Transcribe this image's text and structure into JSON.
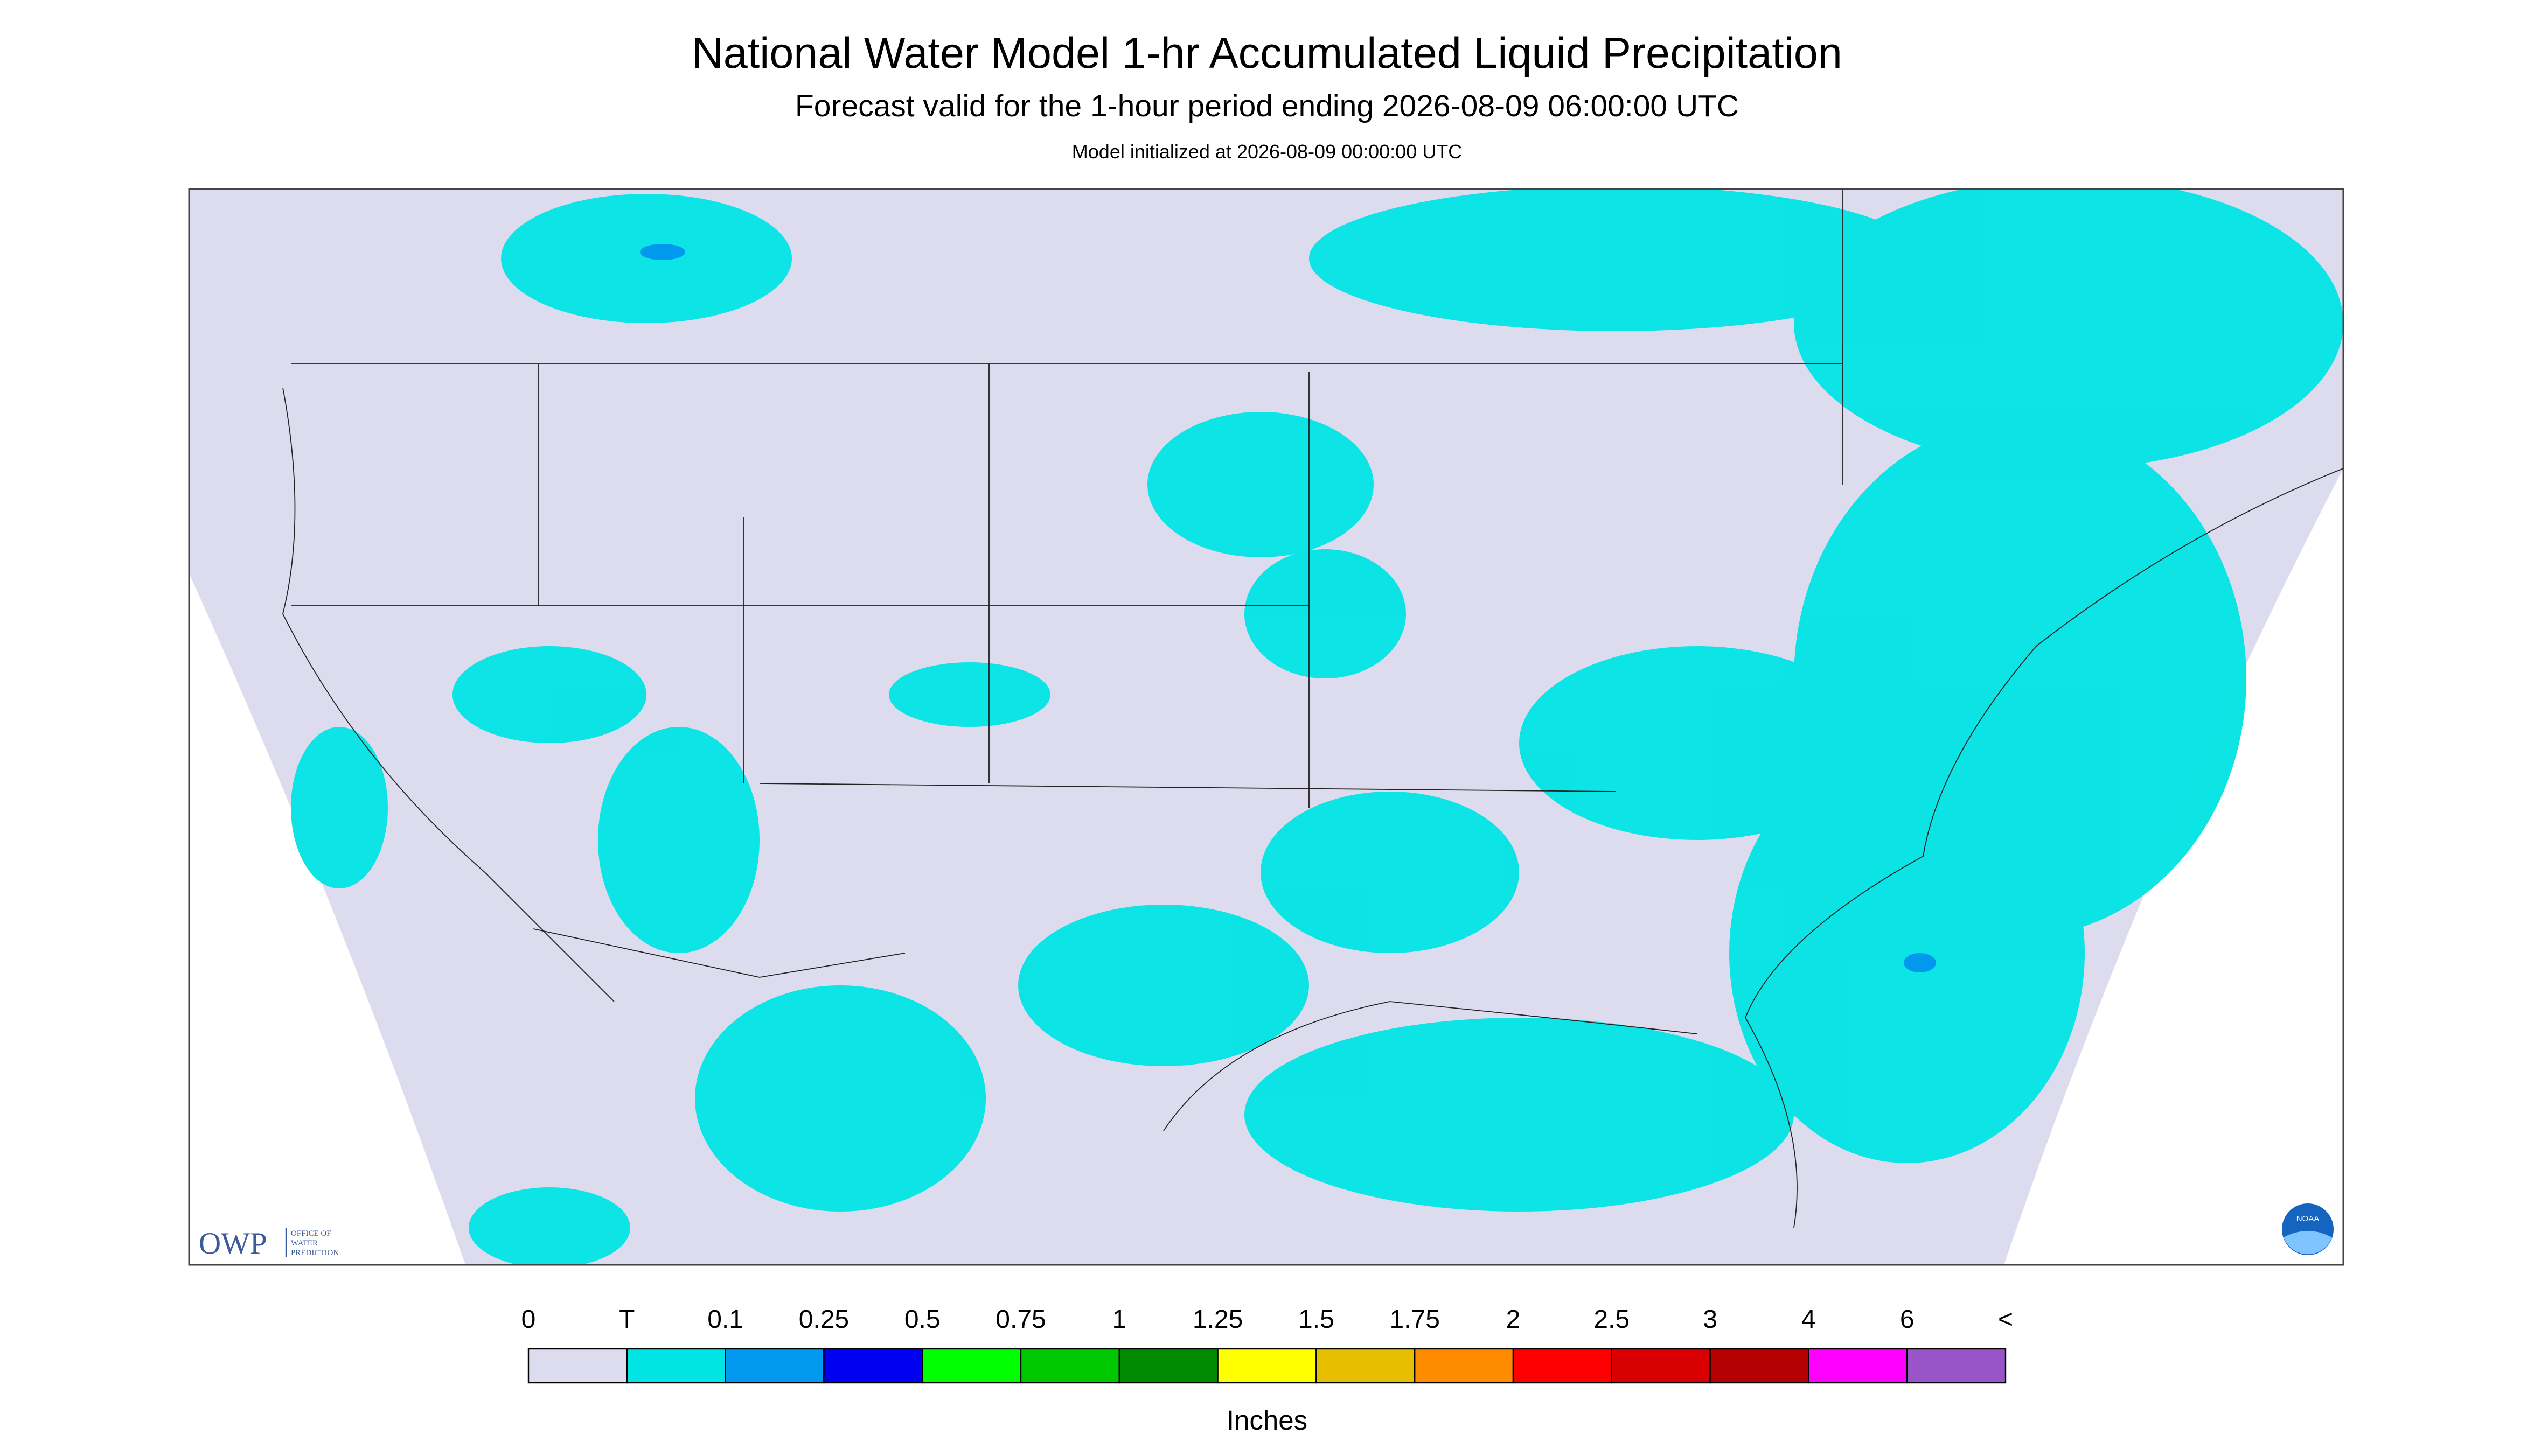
{
  "header": {
    "title": "National Water Model 1-hr Accumulated Liquid Precipitation",
    "subtitle": "Forecast valid for the 1-hour period ending 2026-08-09 06:00:00 UTC",
    "note": "Model initialized at 2026-08-09 00:00:00 UTC"
  },
  "logos": {
    "owp": "OWP",
    "owp_text": [
      "OFFICE OF",
      "WATER",
      "PREDICTION"
    ],
    "noaa": "NOAA"
  },
  "legend": {
    "labels": [
      "0",
      "T",
      "0.1",
      "0.25",
      "0.5",
      "0.75",
      "1",
      "1.25",
      "1.5",
      "1.75",
      "2",
      "2.5",
      "3",
      "4",
      "6",
      "<"
    ],
    "colors": [
      "#dcdcee",
      "#00e4e4",
      "#0099ee",
      "#0000f0",
      "#00ff00",
      "#00c800",
      "#008a00",
      "#ffff00",
      "#e6be00",
      "#ff8c00",
      "#ff0000",
      "#d80000",
      "#b40000",
      "#ff00ff",
      "#9955c8"
    ],
    "unit": "Inches"
  }
}
